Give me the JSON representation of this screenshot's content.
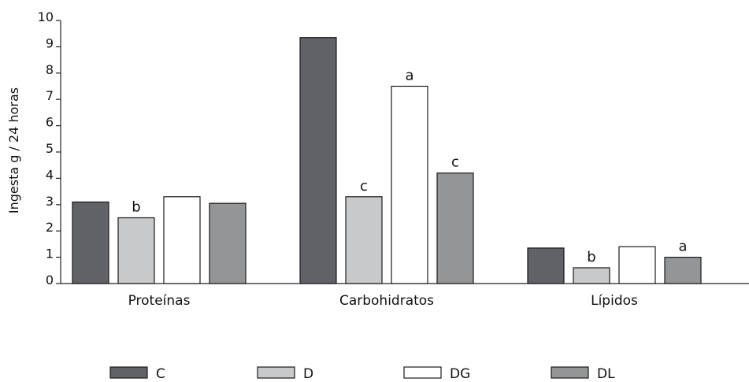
{
  "chart_data": {
    "type": "bar",
    "title": "",
    "xlabel": "",
    "ylabel": "Ingesta g / 24 horas",
    "ylim": [
      0,
      10
    ],
    "yticks": [
      0,
      1,
      2,
      3,
      4,
      5,
      6,
      7,
      8,
      9,
      10
    ],
    "grid": false,
    "legend_position": "bottom",
    "categories": [
      "Proteínas",
      "Carbohidratos",
      "Lípidos"
    ],
    "series": [
      {
        "name": "C",
        "color": "#616266",
        "values": [
          3.1,
          9.35,
          1.35
        ]
      },
      {
        "name": "D",
        "color": "#c8c9cb",
        "values": [
          2.5,
          3.3,
          0.6
        ]
      },
      {
        "name": "DG",
        "color": "#ffffff",
        "values": [
          3.3,
          7.5,
          1.4
        ]
      },
      {
        "name": "DL",
        "color": "#949597",
        "values": [
          3.05,
          4.2,
          1.0
        ]
      }
    ],
    "annotations": [
      {
        "category": "Proteínas",
        "series": "D",
        "text": "b"
      },
      {
        "category": "Carbohidratos",
        "series": "D",
        "text": "c"
      },
      {
        "category": "Carbohidratos",
        "series": "DG",
        "text": "a"
      },
      {
        "category": "Carbohidratos",
        "series": "DL",
        "text": "c"
      },
      {
        "category": "Lípidos",
        "series": "D",
        "text": "b"
      },
      {
        "category": "Lípidos",
        "series": "DL",
        "text": "a"
      }
    ]
  }
}
